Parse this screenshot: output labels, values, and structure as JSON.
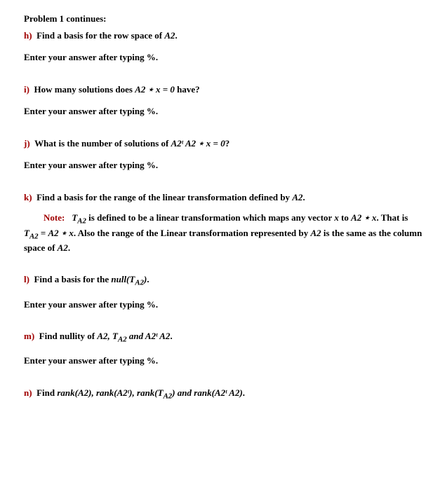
{
  "colors": {
    "accent": "#a00000",
    "text": "#000000",
    "bg": "#ffffff"
  },
  "header": "Problem 1 continues:",
  "common_instruction": "Enter your answer after typing %.",
  "note": {
    "label": "Note:",
    "body_before": "T",
    "body_sub1": "A2",
    "body_mid1": " is defined to be a linear transformation which maps any vector ",
    "vec": "x",
    "body_mid2": " to ",
    "expr1": "A2 ⋆ x",
    "body_mid3": ". That is ",
    "expr2a": "T",
    "expr2a_sub": "A2",
    "eq": " = ",
    "expr2b": "A2 ⋆ x",
    "body_mid4": ". Also the range of the Linear transformation represented by ",
    "expr3": "A2",
    "body_end": " is the same as the column space of ",
    "expr4": "A2",
    "period": "."
  },
  "questions": {
    "h": {
      "label": "h)",
      "text_before": "Find a basis for the row space of ",
      "math": "A2",
      "text_after": ".",
      "show_instruction": true
    },
    "i": {
      "label": "i)",
      "text_before": "How many solutions does ",
      "math": "A2 ⋆ x = 0",
      "text_after": " have?",
      "show_instruction": true
    },
    "j": {
      "label": "j)",
      "text_before": "What is the number of solutions of ",
      "math": "A2ᵗ A2 ⋆ x = 0",
      "text_after": "?",
      "show_instruction": true
    },
    "k": {
      "label": "k)",
      "text_before": "Find a basis for the range of the linear transformation defined by ",
      "math": "A2",
      "text_after": ".",
      "show_instruction": false
    },
    "l": {
      "label": "l)",
      "text_before": "Find a basis for the ",
      "math": "null(T",
      "math_sub": "A2",
      "math_tail": ")",
      "text_after": ".",
      "show_instruction": true
    },
    "m": {
      "label": "m)",
      "text_before": "Find nullity of ",
      "math": "A2, T",
      "math_sub": "A2",
      "math_tail": " and A2ᵗ A2",
      "text_after": ".",
      "show_instruction": true
    },
    "n": {
      "label": "n)",
      "text_before": "Find ",
      "math": "rank(A2), rank(A2ᵗ), rank(T",
      "math_sub": "A2",
      "math_tail": ") and rank(A2ᵗ A2)",
      "text_after": ".",
      "show_instruction": false
    }
  }
}
